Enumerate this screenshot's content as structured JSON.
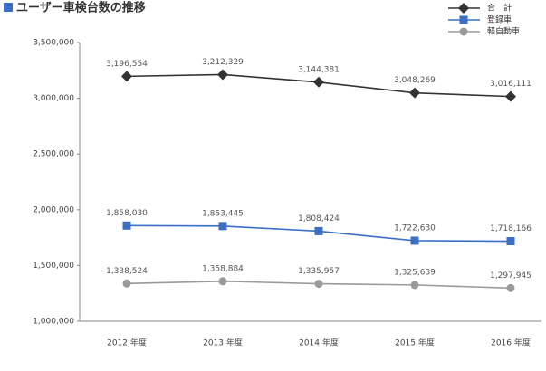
{
  "chart_data": {
    "type": "line",
    "title": "ユーザー車検台数の推移",
    "categories": [
      "2012 年度",
      "2013 年度",
      "2014 年度",
      "2015 年度",
      "2016 年度"
    ],
    "series": [
      {
        "name": "合　計",
        "color": "#333333",
        "marker": "diamond",
        "values": [
          3196554,
          3212329,
          3144381,
          3048269,
          3016111
        ],
        "value_labels": [
          "3,196,554",
          "3,212,329",
          "3,144,381",
          "3,048,269",
          "3,016,111"
        ]
      },
      {
        "name": "登録車",
        "color": "#3b6fc6",
        "marker": "square",
        "values": [
          1858030,
          1853445,
          1808424,
          1722630,
          1718166
        ],
        "value_labels": [
          "1,858,030",
          "1,853,445",
          "1,808,424",
          "1,722,630",
          "1,718,166"
        ]
      },
      {
        "name": "軽自動車",
        "color": "#9a9a9a",
        "marker": "circle",
        "values": [
          1338524,
          1358884,
          1335957,
          1325639,
          1297945
        ],
        "value_labels": [
          "1,338,524",
          "1,358,884",
          "1,335,957",
          "1,325,639",
          "1,297,945"
        ]
      }
    ],
    "ylim": [
      1000000,
      3500000
    ],
    "yticks": [
      {
        "value": 1000000,
        "label": "1,000,000"
      },
      {
        "value": 1500000,
        "label": "1,500,000"
      },
      {
        "value": 2000000,
        "label": "2,000,000"
      },
      {
        "value": 2500000,
        "label": "2,500,000"
      },
      {
        "value": 3000000,
        "label": "3,000,000"
      },
      {
        "value": 3500000,
        "label": "3,500,000"
      }
    ],
    "grid": false
  }
}
